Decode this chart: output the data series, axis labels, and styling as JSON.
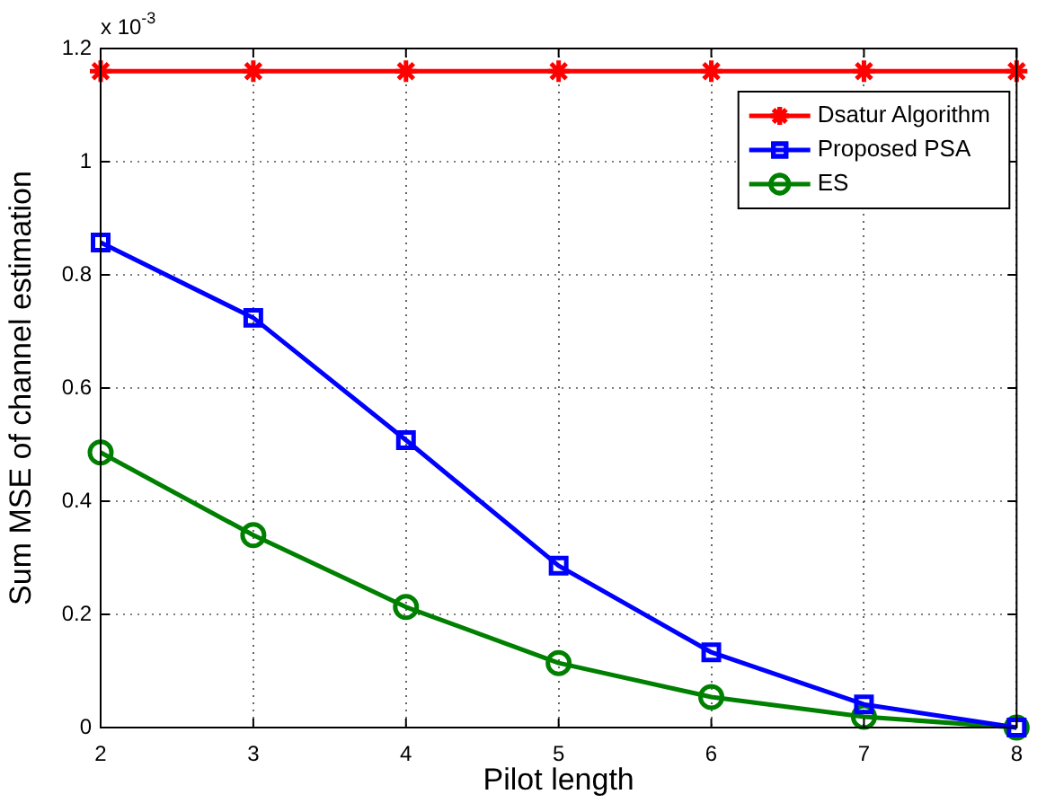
{
  "chart_data": {
    "type": "line",
    "xlabel": "Pilot length",
    "ylabel": "Sum MSE of channel estimation",
    "annotations": [
      "x 10$^{-3}$"
    ],
    "x": [
      2,
      3,
      4,
      5,
      6,
      7,
      8
    ],
    "series": [
      {
        "name": "Dsatur Algorithm",
        "color": "#ff0000",
        "marker": "cross",
        "values": [
          1.16,
          1.16,
          1.16,
          1.16,
          1.16,
          1.16,
          1.16
        ]
      },
      {
        "name": "Proposed PSA",
        "color": "#0000ff",
        "marker": "square",
        "values": [
          0.857,
          0.724,
          0.508,
          0.286,
          0.133,
          0.041,
          0
        ]
      },
      {
        "name": "ES",
        "color": "#008000",
        "marker": "circle",
        "values": [
          0.486,
          0.34,
          0.213,
          0.114,
          0.054,
          0.019,
          0
        ]
      }
    ],
    "xlim": [
      2,
      8
    ],
    "xticks": [
      2,
      3,
      4,
      5,
      6,
      7,
      8
    ],
    "ylim": [
      0,
      1.2
    ],
    "yticks": [
      0,
      0.2,
      0.4,
      0.6,
      0.8,
      1,
      1.2
    ],
    "grid": true,
    "legend": "top right",
    "line_style": "solid"
  }
}
